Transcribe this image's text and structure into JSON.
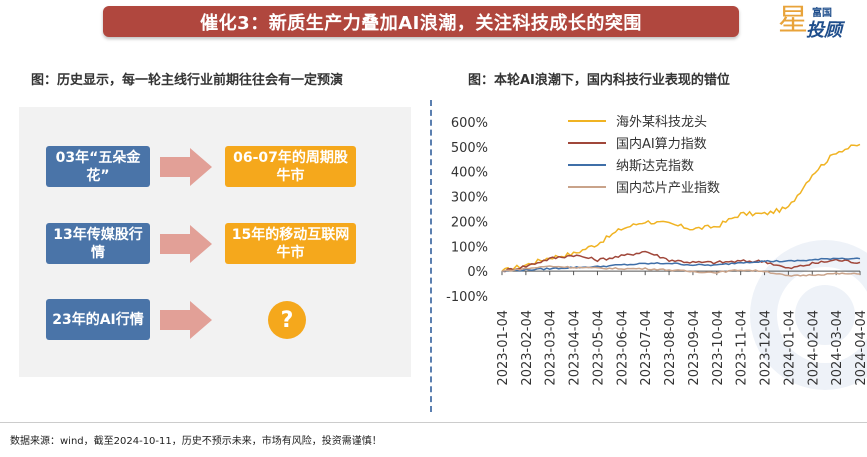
{
  "banner": {
    "title": "催化3：新质生产力叠加AI浪潮，关注科技成长的突围"
  },
  "logo": {
    "small": "富国",
    "big": "投顾",
    "star": "星"
  },
  "left": {
    "subtitle": "图：历史显示，每一轮主线行业前期往往会有一定预演",
    "rows": [
      {
        "from": "03年“五朵金花”",
        "to": "06-07年的周期股牛市"
      },
      {
        "from": "13年传媒股行情",
        "to": "15年的移动互联网牛市"
      },
      {
        "from": "23年的AI行情",
        "to": "?"
      }
    ]
  },
  "right": {
    "subtitle": "图：本轮AI浪潮下，国内科技行业表现的错位"
  },
  "colors": {
    "banner": "#b0473e",
    "blue_box": "#4a74a8",
    "orange_box": "#f5a81c",
    "arrow": "#e2a097",
    "series_gold": "#f0b323",
    "series_brown": "#a0473a",
    "series_blue": "#3f6fa8",
    "series_tan": "#c9a38a"
  },
  "chart_data": {
    "type": "line",
    "x": [
      "2023-01-04",
      "2023-02-04",
      "2023-03-04",
      "2023-04-04",
      "2023-05-04",
      "2023-06-04",
      "2023-07-04",
      "2023-08-04",
      "2023-09-04",
      "2023-10-04",
      "2023-11-04",
      "2023-12-04",
      "2024-01-04",
      "2024-02-04",
      "2024-03-04",
      "2024-04-04"
    ],
    "ylim": [
      -100,
      600
    ],
    "yticks": [
      "600%",
      "500%",
      "400%",
      "300%",
      "200%",
      "100%",
      "0%",
      "-100%"
    ],
    "ytick_values": [
      600,
      500,
      400,
      300,
      200,
      100,
      0,
      -100
    ],
    "legend_position": "top-left",
    "grid": false,
    "series": [
      {
        "name": "海外某科技龙头",
        "values": [
          0,
          25,
          55,
          70,
          110,
          170,
          200,
          190,
          170,
          180,
          230,
          230,
          255,
          390,
          480,
          510
        ]
      },
      {
        "name": "国内AI算力指数",
        "values": [
          0,
          20,
          50,
          65,
          45,
          60,
          80,
          45,
          35,
          35,
          40,
          40,
          10,
          30,
          45,
          35
        ]
      },
      {
        "name": "纳斯达克指数",
        "values": [
          0,
          5,
          10,
          15,
          18,
          25,
          30,
          32,
          25,
          24,
          35,
          40,
          40,
          45,
          52,
          50
        ]
      },
      {
        "name": "国内芯片产业指数",
        "values": [
          0,
          10,
          20,
          15,
          12,
          10,
          10,
          5,
          -2,
          -5,
          5,
          0,
          -20,
          -15,
          -10,
          -12
        ]
      }
    ]
  },
  "footer": {
    "text": "数据来源：wind，截至2024-10-11，历史不预示未来，市场有风险，投资需谨慎！"
  }
}
